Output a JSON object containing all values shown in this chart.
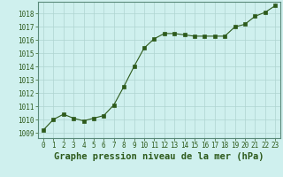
{
  "x": [
    0,
    1,
    2,
    3,
    4,
    5,
    6,
    7,
    8,
    9,
    10,
    11,
    12,
    13,
    14,
    15,
    16,
    17,
    18,
    19,
    20,
    21,
    22,
    23
  ],
  "y": [
    1009.2,
    1010.0,
    1010.4,
    1010.1,
    1009.9,
    1010.1,
    1010.3,
    1011.1,
    1012.5,
    1014.0,
    1015.4,
    1016.1,
    1016.5,
    1016.5,
    1016.4,
    1016.3,
    1016.3,
    1016.3,
    1016.3,
    1017.0,
    1017.2,
    1017.8,
    1018.1,
    1018.6
  ],
  "line_color": "#2d5a1b",
  "marker_color": "#2d5a1b",
  "bg_color": "#cff0ee",
  "grid_color": "#aed4d0",
  "ylabel_ticks": [
    1009,
    1010,
    1011,
    1012,
    1013,
    1014,
    1015,
    1016,
    1017,
    1018
  ],
  "xlabel_label": "Graphe pression niveau de la mer (hPa)",
  "xlim": [
    -0.5,
    23.5
  ],
  "ylim": [
    1008.6,
    1018.9
  ],
  "tick_fontsize": 5.5,
  "xlabel_fontsize": 7.5
}
